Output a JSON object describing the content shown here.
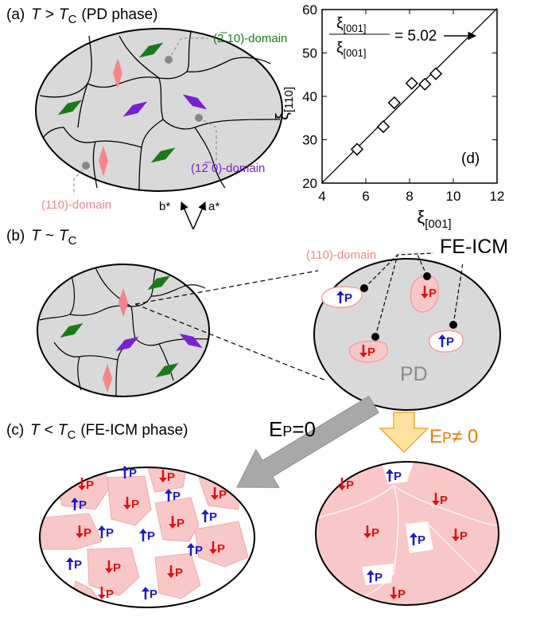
{
  "panel_a": {
    "label": "(a)",
    "condition": {
      "t1": "T",
      "relation": ">",
      "t2": "T",
      "sub": "C"
    },
    "phase": "(PD phase)",
    "domains": [
      "(2̅ 10)-domain",
      "(12̅ 0)-domain",
      "(110)-domain"
    ],
    "axes": [
      "b*",
      "a*"
    ]
  },
  "panel_b": {
    "label": "(b)",
    "condition": {
      "t1": "T",
      "relation": "~",
      "t2": "T",
      "sub": "C"
    },
    "domain": "(110)-domain",
    "feicm": "FE-ICM",
    "pd": "PD"
  },
  "panel_c": {
    "label": "(c)",
    "condition": {
      "t1": "T",
      "relation": "<",
      "t2": "T",
      "sub": "C"
    },
    "phase": "(FE-ICM phase)",
    "field_zero": {
      "e": "E",
      "sub": "P",
      "rest": "=0"
    },
    "field_nonzero": {
      "e": "E",
      "sub": "P",
      "rest": "≠ 0"
    }
  },
  "polarization": "P",
  "chart_data": {
    "type": "scatter",
    "panel_label": "(d)",
    "x_label": {
      "symbol": "ξ",
      "index": "[001]"
    },
    "y_label": {
      "symbol": "ξ",
      "index": "[110]"
    },
    "ratio": {
      "numerator": {
        "symbol": "ξ",
        "index": "[001]"
      },
      "denominator": {
        "symbol": "ξ",
        "index": "[001]"
      }
    },
    "fit": {
      "slope": 5.02,
      "label": "= 5.02"
    },
    "x": [
      5.6,
      6.8,
      7.3,
      8.1,
      8.7,
      9.2
    ],
    "values": [
      27.8,
      33.0,
      38.5,
      43.0,
      42.8,
      45.2
    ],
    "xlim": [
      4,
      12
    ],
    "ylim": [
      20,
      60
    ],
    "xticks": [
      4,
      6,
      8,
      10,
      12
    ],
    "yticks": [
      20,
      30,
      40,
      50,
      60
    ],
    "marker_color": "#000000"
  }
}
